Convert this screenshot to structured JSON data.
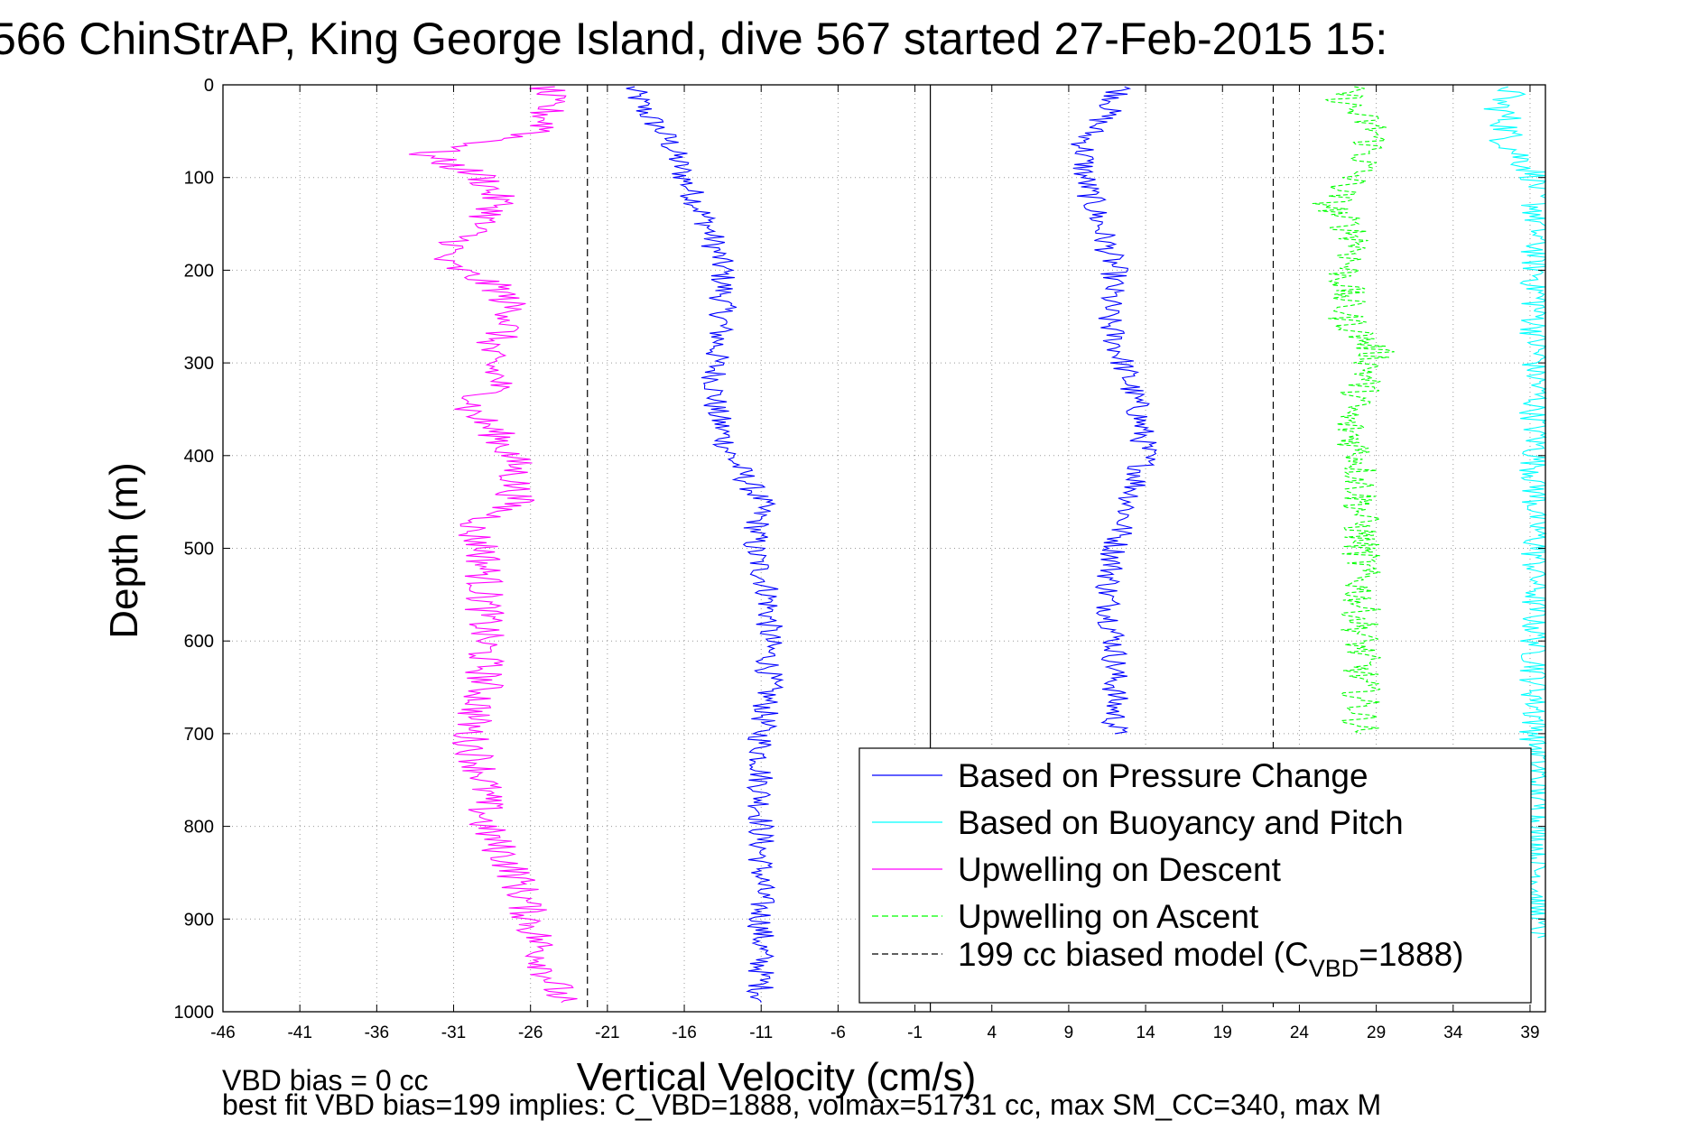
{
  "chart_data": {
    "type": "line",
    "title": "566 ChinStrAP, King George Island, dive 567 started 27-Feb-2015 15:",
    "xlabel": "Vertical Velocity (cm/s)",
    "ylabel": "Depth (m)",
    "xlim": [
      -46,
      40
    ],
    "ylim": [
      1000,
      0
    ],
    "y_reversed": true,
    "grid": true,
    "x_ticks": [
      "-46",
      "-41",
      "-36",
      "-31",
      "-26",
      "-21",
      "-16",
      "-11",
      "-6",
      "-1",
      "4",
      "9",
      "14",
      "19",
      "24",
      "29",
      "34",
      "39"
    ],
    "y_ticks": [
      "0",
      "100",
      "200",
      "300",
      "400",
      "500",
      "600",
      "700",
      "800",
      "900",
      "1000"
    ],
    "legend_position": "bottom-right",
    "legend": [
      {
        "label": "Based on Pressure Change",
        "color": "#0000ff",
        "dash": "solid"
      },
      {
        "label": "Based on Buoyancy and Pitch",
        "color": "#00ffff",
        "dash": "solid"
      },
      {
        "label": "Upwelling on Descent",
        "color": "#ff00ff",
        "dash": "solid"
      },
      {
        "label": "Upwelling on Ascent",
        "color": "#00ff00",
        "dash": "dashed"
      },
      {
        "label_prefix": "199 cc biased model (C",
        "label_sub": "VBD",
        "label_suffix": "=1888)",
        "color": "#000000",
        "dash": "dashed"
      }
    ],
    "series": [
      {
        "name": "Based on Pressure Change",
        "segment": "descent",
        "color": "#0000ff",
        "dash": "solid",
        "depth": [
          2,
          30,
          60,
          100,
          150,
          200,
          250,
          300,
          350,
          400,
          450,
          500,
          550,
          600,
          650,
          700,
          750,
          800,
          850,
          900,
          950,
          990
        ],
        "value": [
          -19.5,
          -18.5,
          -17,
          -16,
          -14.5,
          -13.5,
          -13.5,
          -14,
          -14,
          -13,
          -11,
          -11.5,
          -10.5,
          -10.5,
          -10.5,
          -11,
          -11,
          -11,
          -11,
          -11,
          -11,
          -11
        ]
      },
      {
        "name": "Based on Pressure Change",
        "segment": "ascent",
        "color": "#0000ff",
        "dash": "solid",
        "depth": [
          2,
          30,
          60,
          100,
          150,
          200,
          250,
          300,
          350,
          400,
          450,
          500,
          550,
          600,
          650,
          700
        ],
        "value": [
          12.5,
          11.5,
          10,
          10,
          11,
          12,
          11.5,
          12.5,
          13.5,
          14,
          13,
          12,
          11.5,
          12,
          12,
          12
        ]
      },
      {
        "name": "Based on Buoyancy and Pitch",
        "segment": "ascent",
        "color": "#00ffff",
        "dash": "solid",
        "depth": [
          2,
          20,
          40,
          60,
          100,
          150,
          200,
          250,
          300,
          350,
          400,
          450,
          600,
          750,
          800,
          870,
          920
        ],
        "value": [
          38,
          37,
          37.5,
          37.5,
          39.5,
          39.5,
          39.5,
          39.5,
          39.5,
          39.5,
          39.5,
          39.5,
          39.5,
          39.5,
          39.5,
          39.5,
          39.5
        ]
      },
      {
        "name": "Upwelling on Descent",
        "color": "#ff00ff",
        "dash": "solid",
        "depth": [
          2,
          20,
          50,
          75,
          100,
          130,
          160,
          190,
          220,
          250,
          290,
          320,
          350,
          380,
          410,
          450,
          480,
          500,
          550,
          600,
          650,
          700,
          750,
          800,
          850,
          900,
          950,
          990
        ],
        "value": [
          -25,
          -25,
          -25,
          -33,
          -29,
          -28,
          -30,
          -32,
          -28,
          -27,
          -29,
          -28,
          -30,
          -28,
          -27,
          -27,
          -30,
          -29,
          -29,
          -29,
          -29,
          -30,
          -29,
          -29,
          -27,
          -26,
          -25,
          -24
        ]
      },
      {
        "name": "Upwelling on Ascent",
        "color": "#00ff00",
        "dash": "dashed",
        "depth": [
          2,
          20,
          50,
          90,
          130,
          170,
          200,
          250,
          290,
          330,
          360,
          400,
          450,
          500,
          550,
          600,
          650,
          700
        ],
        "value": [
          27,
          27,
          29,
          28,
          26,
          28,
          27,
          27,
          29,
          28,
          27,
          28,
          28,
          28,
          28,
          28,
          28,
          28
        ]
      }
    ],
    "reference_lines": [
      {
        "x": -22.3,
        "style": "dashed",
        "color": "#000000"
      },
      {
        "x": 0,
        "style": "solid",
        "color": "#000000"
      },
      {
        "x": 22.3,
        "style": "dashed",
        "color": "#000000"
      }
    ],
    "annotations": [
      "VBD bias = 0 cc",
      "best fit VBD bias=199 implies: C_VBD=1888, volmax=51731 cc, max SM_CC=340, max M"
    ]
  }
}
